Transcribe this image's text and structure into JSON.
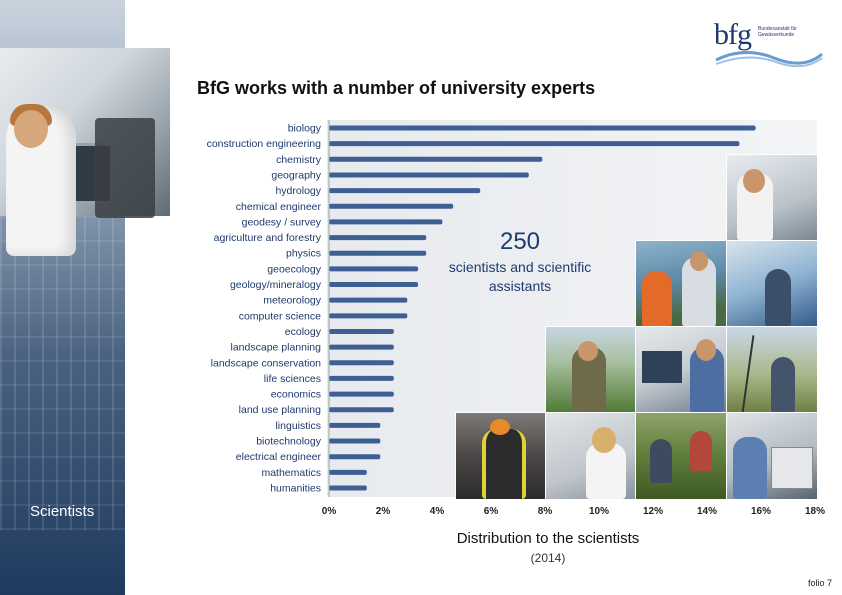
{
  "page": {
    "title": "BfG works with a number of university experts",
    "stat_number": "250",
    "stat_text": "scientists and scientific assistants",
    "section_label": "Scientists",
    "caption": "Distribution to the scientists",
    "caption_year": "(2014)",
    "folio": "folio 7"
  },
  "logo": {
    "text": "bfg",
    "subtext": "Bundesanstalt für Gewässerkunde"
  },
  "colors": {
    "bar": "#3e5f94",
    "bar_dark": "#2c4a7a",
    "label_text": "#1f3a6e",
    "sidebar_dark": "#1f3a5f"
  },
  "chart_data": {
    "type": "bar",
    "orientation": "horizontal",
    "categories": [
      "biology",
      "construction engineering",
      "chemistry",
      "geography",
      "hydrology",
      "chemical engineer",
      "geodesy / survey",
      "agriculture and forestry",
      "physics",
      "geoecology",
      "geology/mineralogy",
      "meteorology",
      "computer science",
      "ecology",
      "landscape planning",
      "landscape conservation",
      "life sciences",
      "economics",
      "land use planning",
      "linguistics",
      "biotechnology",
      "electrical engineer",
      "mathematics",
      "humanities"
    ],
    "values": [
      15.8,
      15.2,
      7.9,
      7.4,
      5.6,
      4.6,
      4.2,
      3.6,
      3.6,
      3.3,
      3.3,
      2.9,
      2.9,
      2.4,
      2.4,
      2.4,
      2.4,
      2.4,
      2.4,
      1.9,
      1.9,
      1.9,
      1.4,
      1.4
    ],
    "xticks": [
      "0%",
      "2%",
      "4%",
      "6%",
      "8%",
      "10%",
      "12%",
      "14%",
      "16%",
      "18%"
    ],
    "xlim": [
      0,
      18
    ],
    "unit": "%",
    "grid": false
  }
}
